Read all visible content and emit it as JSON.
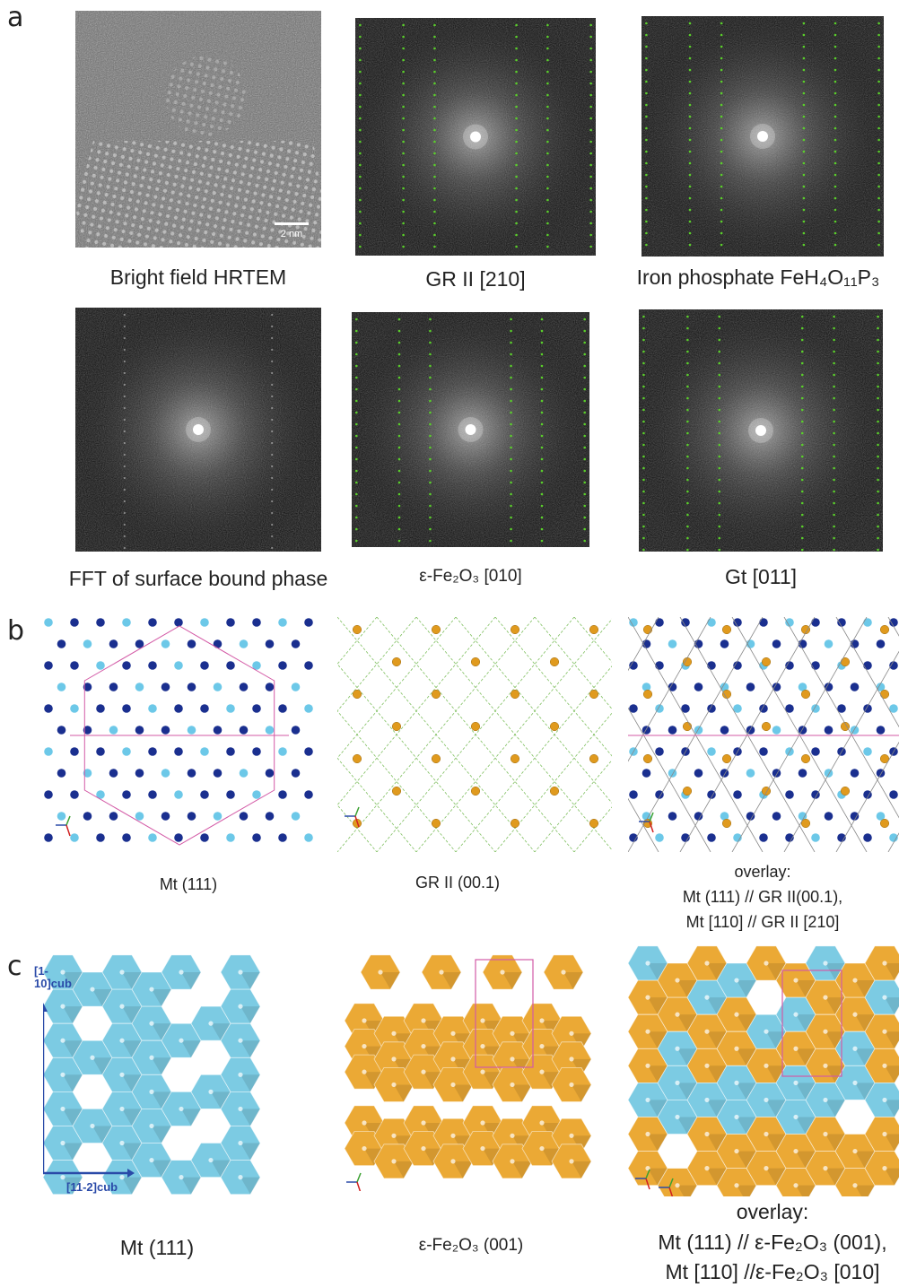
{
  "panels": {
    "a": {
      "letter": "a",
      "captions": {
        "hrtem": "Bright field HRTEM",
        "gr_ii_210": "GR II [210]",
        "iron_phosphate": "Iron phosphate FeH₄O₁₁P₃",
        "fft_surface": "FFT of surface bound phase",
        "eps_fe2o3_010": "ε-Fe₂O₃ [010]",
        "gt_011": "Gt [011]"
      },
      "scale_bar": "2 nm"
    },
    "b": {
      "letter": "b",
      "captions": {
        "mt_111": "Mt (111)",
        "gr_ii_001": "GR II (00.1)",
        "overlay_line1": "overlay:",
        "overlay_line2": "Mt (111) // GR II(00.1),",
        "overlay_line3": "Mt [110] // GR II [210]"
      }
    },
    "c": {
      "letter": "c",
      "captions": {
        "mt_111": "Mt (111)",
        "eps_001": "ε-Fe₂O₃ (001)",
        "overlay_line1": "overlay:",
        "overlay_line2": "Mt (111) // ε-Fe₂O₃ (001),",
        "overlay_line3": "Mt [110] //ε-Fe₂O₃ [010]"
      },
      "axis_labels": {
        "vertical": "[1-10]cub",
        "horizontal": "[11-2]cub"
      }
    }
  },
  "colors": {
    "overlay_green": "#5ad02a",
    "mt_dark_blue": "#1a2f8f",
    "mt_light_blue": "#6cc8e8",
    "gr_orange": "#e09a1e",
    "octa_blue": "#7ccbe3",
    "octa_orange": "#eba935",
    "axis_blue": "#2a4aa8",
    "unit_cell_pink": "#d35aa6"
  }
}
